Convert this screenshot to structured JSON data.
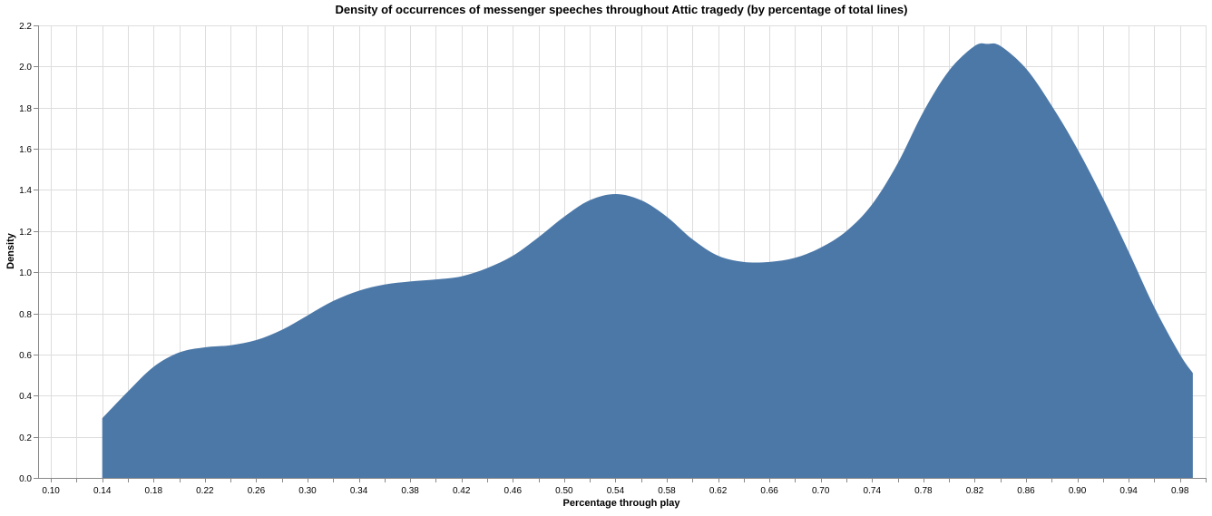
{
  "chart_data": {
    "type": "area",
    "title": "Density of occurrences of messenger speeches throughout Attic tragedy (by percentage of total lines)",
    "xlabel": "Percentage through play",
    "ylabel": "Density",
    "xlim": [
      0.09,
      1.0
    ],
    "ylim": [
      0,
      2.2
    ],
    "grid": true,
    "x_ticks": [
      "0.10",
      "0.14",
      "0.18",
      "0.22",
      "0.26",
      "0.30",
      "0.34",
      "0.38",
      "0.42",
      "0.46",
      "0.50",
      "0.54",
      "0.58",
      "0.62",
      "0.66",
      "0.70",
      "0.74",
      "0.78",
      "0.82",
      "0.86",
      "0.90",
      "0.94",
      "0.98"
    ],
    "y_ticks": [
      "0.0",
      "0.2",
      "0.4",
      "0.6",
      "0.8",
      "1.0",
      "1.2",
      "1.4",
      "1.6",
      "1.8",
      "2.0",
      "2.2"
    ],
    "x_minor_step": 0.02,
    "series": [
      {
        "color": "#4c78a8",
        "points": [
          [
            0.14,
            0.0
          ],
          [
            0.14,
            0.29
          ],
          [
            0.16,
            0.42
          ],
          [
            0.18,
            0.54
          ],
          [
            0.2,
            0.61
          ],
          [
            0.22,
            0.635
          ],
          [
            0.24,
            0.645
          ],
          [
            0.26,
            0.67
          ],
          [
            0.28,
            0.72
          ],
          [
            0.3,
            0.79
          ],
          [
            0.32,
            0.86
          ],
          [
            0.34,
            0.91
          ],
          [
            0.36,
            0.94
          ],
          [
            0.38,
            0.955
          ],
          [
            0.4,
            0.965
          ],
          [
            0.42,
            0.98
          ],
          [
            0.44,
            1.02
          ],
          [
            0.46,
            1.08
          ],
          [
            0.48,
            1.17
          ],
          [
            0.5,
            1.27
          ],
          [
            0.52,
            1.35
          ],
          [
            0.54,
            1.38
          ],
          [
            0.56,
            1.35
          ],
          [
            0.58,
            1.27
          ],
          [
            0.6,
            1.16
          ],
          [
            0.62,
            1.08
          ],
          [
            0.64,
            1.05
          ],
          [
            0.66,
            1.05
          ],
          [
            0.68,
            1.07
          ],
          [
            0.7,
            1.12
          ],
          [
            0.72,
            1.2
          ],
          [
            0.74,
            1.33
          ],
          [
            0.76,
            1.53
          ],
          [
            0.78,
            1.78
          ],
          [
            0.8,
            1.98
          ],
          [
            0.82,
            2.1
          ],
          [
            0.83,
            2.11
          ],
          [
            0.84,
            2.1
          ],
          [
            0.86,
            1.99
          ],
          [
            0.88,
            1.81
          ],
          [
            0.9,
            1.6
          ],
          [
            0.92,
            1.36
          ],
          [
            0.94,
            1.1
          ],
          [
            0.96,
            0.83
          ],
          [
            0.98,
            0.6
          ],
          [
            0.99,
            0.51
          ],
          [
            0.99,
            0.0
          ]
        ]
      }
    ]
  }
}
